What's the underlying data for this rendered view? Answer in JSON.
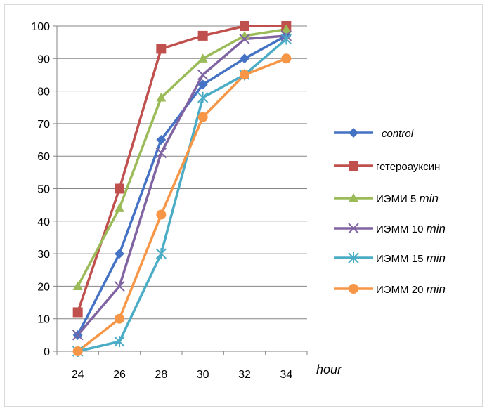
{
  "chart_data": {
    "type": "line",
    "x": [
      24,
      26,
      28,
      30,
      32,
      34
    ],
    "xlabel": "hour",
    "ylabel": "",
    "ylim": [
      0,
      100
    ],
    "yticks": [
      0,
      10,
      20,
      30,
      40,
      50,
      60,
      70,
      80,
      90,
      100
    ],
    "grid": "horizontal",
    "legend_position": "right",
    "series": [
      {
        "name": "control",
        "name_style": "italic",
        "color": "#4472C4",
        "marker": "diamond",
        "values": [
          5,
          30,
          65,
          82,
          90,
          97
        ]
      },
      {
        "name": "гетероауксин",
        "name_style": "normal",
        "color": "#C0504D",
        "marker": "square",
        "values": [
          12,
          50,
          93,
          97,
          100,
          100
        ]
      },
      {
        "name_prefix": "ИЭМИ 5",
        "name_suffix": "min",
        "color": "#9BBB59",
        "marker": "triangle",
        "values": [
          20,
          44,
          78,
          90,
          97,
          99
        ]
      },
      {
        "name_prefix": "ИЭММ 10",
        "name_suffix": "min",
        "color": "#8064A2",
        "marker": "x",
        "values": [
          5,
          20,
          61,
          85,
          96,
          97
        ]
      },
      {
        "name_prefix": "ИЭММ 15",
        "name_suffix": "min",
        "color": "#4BACC6",
        "marker": "star",
        "values": [
          0,
          3,
          30,
          78,
          85,
          96
        ]
      },
      {
        "name_prefix": "ИЭММ 20",
        "name_suffix": "min",
        "color": "#F79646",
        "marker": "circle",
        "values": [
          0,
          10,
          42,
          72,
          85,
          90
        ]
      }
    ]
  }
}
